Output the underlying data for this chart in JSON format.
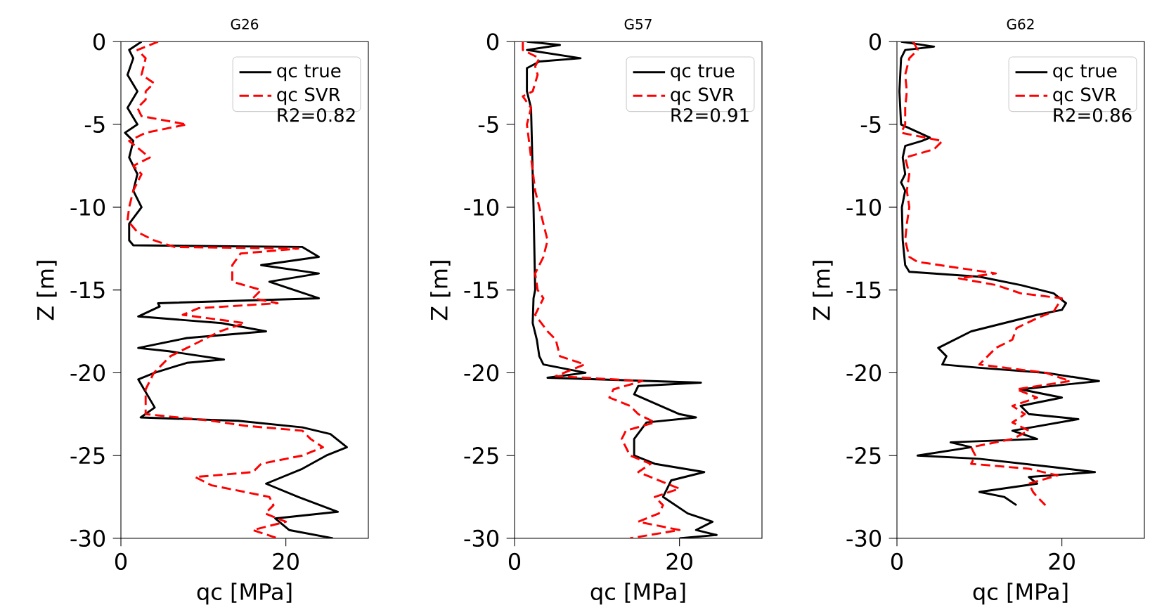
{
  "chart_data": [
    {
      "type": "line",
      "title": "G26",
      "xlabel": "qc [MPa]",
      "ylabel": "Z [m]",
      "xlim": [
        0,
        30
      ],
      "xticks": [
        0,
        20
      ],
      "ylim": [
        -30,
        0
      ],
      "yticks": [
        -30,
        -25,
        -20,
        -15,
        -10,
        -5,
        0
      ],
      "legend": "top right",
      "series": [
        {
          "name": "qc true",
          "color": "#000000",
          "line_style": "solid",
          "x": [
            2.5,
            1,
            1.5,
            0.8,
            2,
            0.8,
            2,
            0.5,
            1.5,
            1,
            2,
            1.5,
            2.5,
            1,
            1,
            1.5,
            22,
            24,
            17,
            24,
            18,
            21,
            24,
            4.5,
            4.7,
            2.1,
            12.2,
            17.6,
            8,
            2.1,
            5.8,
            12.5,
            8,
            4.1,
            2.1,
            4.1,
            2.4,
            14.2,
            22,
            25.4,
            27.4,
            24.9,
            22,
            17.6,
            21.5,
            26.3,
            18.7,
            20.4,
            25.7
          ],
          "values": [
            0,
            -0.5,
            -1,
            -2,
            -3,
            -4,
            -5,
            -5.5,
            -6,
            -7,
            -8,
            -9,
            -10,
            -11,
            -12,
            -12.3,
            -12.4,
            -13,
            -13.5,
            -14,
            -14.5,
            -15,
            -15.5,
            -15.8,
            -16,
            -16.6,
            -17,
            -17.5,
            -17.9,
            -18.5,
            -18.7,
            -19.2,
            -19.4,
            -20,
            -20.4,
            -22.1,
            -22.7,
            -22.9,
            -23.3,
            -23.7,
            -24.5,
            -25,
            -25.8,
            -26.7,
            -27.5,
            -28.4,
            -28.8,
            -29.5,
            -30
          ]
        },
        {
          "name": "qc SVR R2=0.82",
          "color": "#ff0000",
          "line_style": "dashed",
          "x": [
            4.5,
            2,
            3,
            2.5,
            4,
            3,
            3,
            2,
            2.5,
            8,
            3,
            1,
            3.5,
            1.5,
            2.5,
            1.5,
            1,
            0.8,
            2,
            4,
            6.5,
            21.5,
            14.5,
            13.5,
            13.5,
            17,
            16,
            19,
            9.4,
            7.5,
            15,
            12,
            10,
            8,
            6,
            5,
            4,
            3,
            3,
            11,
            15,
            22,
            23,
            24.5,
            22,
            17,
            16,
            9,
            11,
            18,
            18.5,
            17.5,
            20,
            16,
            19
          ],
          "values": [
            0,
            -0.5,
            -1,
            -2,
            -2.5,
            -3,
            -3.5,
            -4,
            -4.5,
            -5,
            -5.5,
            -6,
            -7,
            -7.5,
            -8,
            -9,
            -10,
            -10.8,
            -11.5,
            -12,
            -12.4,
            -12.5,
            -12.8,
            -13.5,
            -14.5,
            -15,
            -15.5,
            -15.8,
            -16.1,
            -16.5,
            -17,
            -17.5,
            -18,
            -18.5,
            -19,
            -19.5,
            -20,
            -21,
            -22.5,
            -22.9,
            -23.2,
            -23.5,
            -24,
            -24.5,
            -25,
            -25.5,
            -26,
            -26.3,
            -26.8,
            -27.5,
            -28,
            -28.5,
            -29,
            -29.5,
            -30
          ]
        }
      ]
    },
    {
      "type": "line",
      "title": "G57",
      "xlabel": "qc [MPa]",
      "ylabel": "Z [m]",
      "xlim": [
        0,
        30
      ],
      "xticks": [
        0,
        20
      ],
      "ylim": [
        -30,
        0
      ],
      "yticks": [
        -30,
        -25,
        -20,
        -15,
        -10,
        -5,
        0
      ],
      "legend": "top right",
      "series": [
        {
          "name": "qc true",
          "color": "#000000",
          "line_style": "solid",
          "x": [
            1.5,
            5.5,
            1.5,
            8,
            3,
            1.5,
            1.5,
            2,
            2.3,
            2.5,
            2.3,
            2.2,
            2.7,
            3,
            3.5,
            8.6,
            4,
            22.6,
            15,
            14.5,
            20,
            22,
            16,
            14.5,
            14.5,
            17,
            23,
            19,
            18,
            21,
            24,
            22,
            24.5,
            20
          ],
          "values": [
            0,
            -0.2,
            -0.5,
            -1,
            -1.2,
            -1.6,
            -3,
            -4,
            -10,
            -15,
            -15.5,
            -17,
            -18,
            -19,
            -19.5,
            -20,
            -20.3,
            -20.6,
            -20.8,
            -21.3,
            -22.5,
            -22.7,
            -23,
            -24,
            -25,
            -25.5,
            -26,
            -26.5,
            -27.5,
            -28.5,
            -29,
            -29.5,
            -29.8,
            -30
          ]
        },
        {
          "name": "qc SVR R2=0.91",
          "color": "#ff0000",
          "line_style": "dashed",
          "x": [
            1,
            1,
            3,
            2.5,
            2.8,
            2.2,
            1,
            2,
            1.5,
            2,
            2.5,
            4,
            3.5,
            2.5,
            2.8,
            3.5,
            2.5,
            4,
            5,
            5.5,
            8.5,
            5,
            15.5,
            12,
            11.5,
            14,
            15,
            17,
            13.5,
            13,
            14,
            16.5,
            15,
            20,
            17,
            18,
            17.5,
            15,
            20,
            14
          ],
          "values": [
            0,
            -0.5,
            -1,
            -1.5,
            -2,
            -3,
            -3.3,
            -4,
            -5,
            -7,
            -9,
            -12,
            -13,
            -14,
            -15,
            -15.5,
            -16.5,
            -17.5,
            -18,
            -19,
            -19.5,
            -20.2,
            -20.5,
            -21,
            -21.5,
            -22,
            -22.5,
            -23,
            -23.5,
            -24,
            -25,
            -25.5,
            -26,
            -27,
            -27.5,
            -28,
            -28.5,
            -29,
            -29.5,
            -30
          ]
        }
      ]
    },
    {
      "type": "line",
      "title": "G62",
      "xlabel": "qc [MPa]",
      "ylabel": "Z [m]",
      "xlim": [
        0,
        30
      ],
      "xticks": [
        0,
        20
      ],
      "ylim": [
        -30,
        0
      ],
      "yticks": [
        -30,
        -25,
        -20,
        -15,
        -10,
        -5,
        0
      ],
      "legend": "top right",
      "series": [
        {
          "name": "qc true",
          "color": "#000000",
          "line_style": "solid",
          "x": [
            0.5,
            4.5,
            1,
            0.5,
            0.3,
            0.5,
            4,
            3,
            1,
            0.7,
            1,
            0.5,
            1,
            0.6,
            0.7,
            1,
            1.5,
            10,
            15,
            19,
            20.5,
            20,
            17,
            9,
            5,
            6,
            5.5,
            10,
            18,
            24.5,
            15,
            20,
            15,
            16,
            22,
            14,
            17,
            6.5,
            9,
            2.5,
            10,
            19,
            24,
            16,
            17,
            10,
            13,
            14.5
          ],
          "values": [
            0,
            -0.3,
            -0.5,
            -1,
            -3,
            -5,
            -5.8,
            -6,
            -6.3,
            -7,
            -8,
            -8.5,
            -9,
            -10,
            -12,
            -13.5,
            -13.9,
            -14.2,
            -14.7,
            -15.2,
            -15.8,
            -16.2,
            -16.5,
            -17.5,
            -18.5,
            -19,
            -19.5,
            -19.7,
            -20,
            -20.5,
            -21,
            -21.5,
            -22,
            -22.5,
            -22.8,
            -23.5,
            -24,
            -24.2,
            -24.5,
            -25,
            -25.2,
            -25.7,
            -26,
            -26.3,
            -26.7,
            -27.2,
            -27.5,
            -28
          ]
        },
        {
          "name": "qc SVR R2=0.86",
          "color": "#ff0000",
          "line_style": "dashed",
          "x": [
            2,
            2.5,
            1.5,
            1,
            1.2,
            1,
            1,
            0.5,
            5.5,
            4.5,
            1,
            1.5,
            1.2,
            1.5,
            1.2,
            1,
            1.5,
            2.5,
            12,
            7.5,
            12,
            15,
            20,
            19,
            17,
            14.5,
            14,
            12,
            10,
            18,
            21,
            14.5,
            17,
            14,
            15.5,
            14,
            16,
            14,
            9,
            9.5,
            9,
            16,
            19.5,
            16,
            16.5,
            17,
            18
          ],
          "values": [
            0,
            -0.5,
            -1,
            -2,
            -3,
            -4,
            -5,
            -5.5,
            -6,
            -6.5,
            -7,
            -8,
            -9,
            -10,
            -11,
            -12,
            -13,
            -13.3,
            -14,
            -14.3,
            -14.7,
            -15.2,
            -15.5,
            -16.3,
            -16.7,
            -17.3,
            -18,
            -18.5,
            -19.5,
            -20,
            -20.5,
            -21,
            -21.5,
            -22,
            -22.5,
            -23,
            -23.5,
            -24,
            -24.5,
            -25,
            -25.5,
            -25.8,
            -26.2,
            -26.7,
            -27.2,
            -27.5,
            -28
          ]
        }
      ]
    }
  ]
}
